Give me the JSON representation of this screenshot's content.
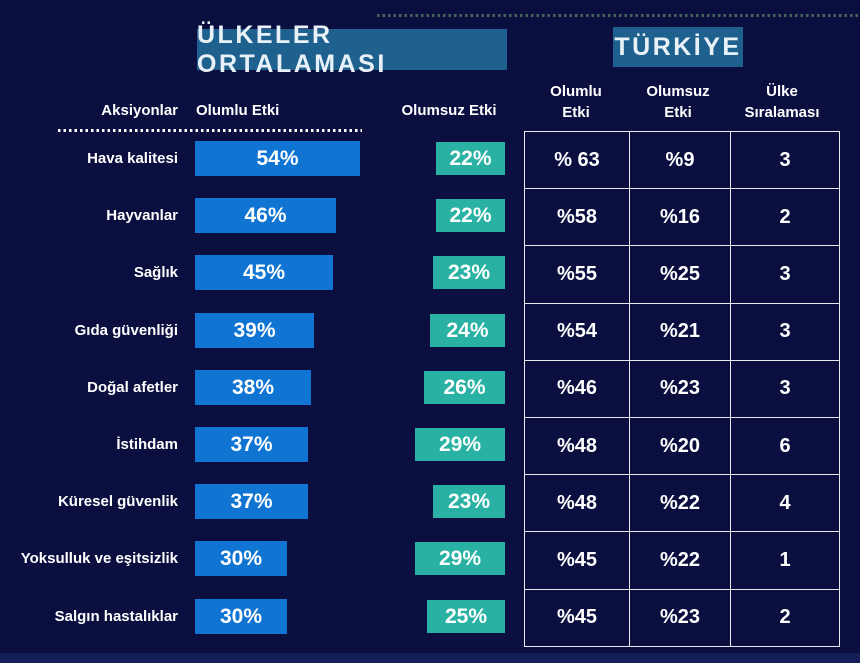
{
  "headers": {
    "countries_avg": "ÜLKELER ORTALAMASI",
    "turkey": "TÜRKİYE"
  },
  "columns": {
    "actions": "Aksiyonlar",
    "positive": "Olumlu Etki",
    "negative": "Olumsuz Etki",
    "turkey_positive_line1": "Olumlu",
    "turkey_positive_line2": "Etki",
    "turkey_negative_line1": "Olumsuz",
    "turkey_negative_line2": "Etki",
    "turkey_rank_line1": "Ülke",
    "turkey_rank_line2": "Sıralaması"
  },
  "colors": {
    "background": "#0a0f3f",
    "header_box": "#1e608e",
    "positive_bar": "#0f74d2",
    "negative_box": "#29b2a3",
    "table_border": "#e8eaf0",
    "text": "#ffffff"
  },
  "rows": [
    {
      "label": "Hava kalitesi",
      "positive": 54,
      "positive_label": "54%",
      "negative": 22,
      "negative_label": "22%",
      "turkey_positive": "% 63",
      "turkey_negative": "%9",
      "turkey_rank": "3"
    },
    {
      "label": "Hayvanlar",
      "positive": 46,
      "positive_label": "46%",
      "negative": 22,
      "negative_label": "22%",
      "turkey_positive": "%58",
      "turkey_negative": "%16",
      "turkey_rank": "2"
    },
    {
      "label": "Sağlık",
      "positive": 45,
      "positive_label": "45%",
      "negative": 23,
      "negative_label": "23%",
      "turkey_positive": "%55",
      "turkey_negative": "%25",
      "turkey_rank": "3"
    },
    {
      "label": "Gıda güvenliği",
      "positive": 39,
      "positive_label": "39%",
      "negative": 24,
      "negative_label": "24%",
      "turkey_positive": "%54",
      "turkey_negative": "%21",
      "turkey_rank": "3"
    },
    {
      "label": "Doğal afetler",
      "positive": 38,
      "positive_label": "38%",
      "negative": 26,
      "negative_label": "26%",
      "turkey_positive": "%46",
      "turkey_negative": "%23",
      "turkey_rank": "3"
    },
    {
      "label": "İstihdam",
      "positive": 37,
      "positive_label": "37%",
      "negative": 29,
      "negative_label": "29%",
      "turkey_positive": "%48",
      "turkey_negative": "%20",
      "turkey_rank": "6"
    },
    {
      "label": "Küresel güvenlik",
      "positive": 37,
      "positive_label": "37%",
      "negative": 23,
      "negative_label": "23%",
      "turkey_positive": "%48",
      "turkey_negative": "%22",
      "turkey_rank": "4"
    },
    {
      "label": "Yoksulluk ve eşitsizlik",
      "positive": 30,
      "positive_label": "30%",
      "negative": 29,
      "negative_label": "29%",
      "turkey_positive": "%45",
      "turkey_negative": "%22",
      "turkey_rank": "1"
    },
    {
      "label": "Salgın hastalıklar",
      "positive": 30,
      "positive_label": "30%",
      "negative": 25,
      "negative_label": "25%",
      "turkey_positive": "%45",
      "turkey_negative": "%23",
      "turkey_rank": "2"
    }
  ],
  "chart_data": {
    "type": "bar",
    "title": "ÜLKELER ORTALAMASI / TÜRKİYE",
    "categories": [
      "Hava kalitesi",
      "Hayvanlar",
      "Sağlık",
      "Gıda güvenliği",
      "Doğal afetler",
      "İstihdam",
      "Küresel güvenlik",
      "Yoksulluk ve eşitsizlik",
      "Salgın hastalıklar"
    ],
    "series": [
      {
        "name": "Olumlu Etki (ülkeler ortalaması)",
        "unit": "%",
        "values": [
          54,
          46,
          45,
          39,
          38,
          37,
          37,
          30,
          30
        ]
      },
      {
        "name": "Olumsuz Etki (ülkeler ortalaması)",
        "unit": "%",
        "values": [
          22,
          22,
          23,
          24,
          26,
          29,
          23,
          29,
          25
        ]
      },
      {
        "name": "Olumlu Etki (Türkiye)",
        "unit": "%",
        "values": [
          63,
          58,
          55,
          54,
          46,
          48,
          48,
          45,
          45
        ]
      },
      {
        "name": "Olumsuz Etki (Türkiye)",
        "unit": "%",
        "values": [
          9,
          16,
          25,
          21,
          23,
          20,
          22,
          22,
          23
        ]
      },
      {
        "name": "Ülke Sıralaması (Türkiye)",
        "unit": "rank",
        "values": [
          3,
          2,
          3,
          3,
          3,
          6,
          4,
          1,
          2
        ]
      }
    ],
    "layout_hints": {
      "orientation": "horizontal",
      "grid": false,
      "legend": "column headers",
      "value_labels": "inside bars",
      "turkey_values_shown_as": "table"
    }
  }
}
